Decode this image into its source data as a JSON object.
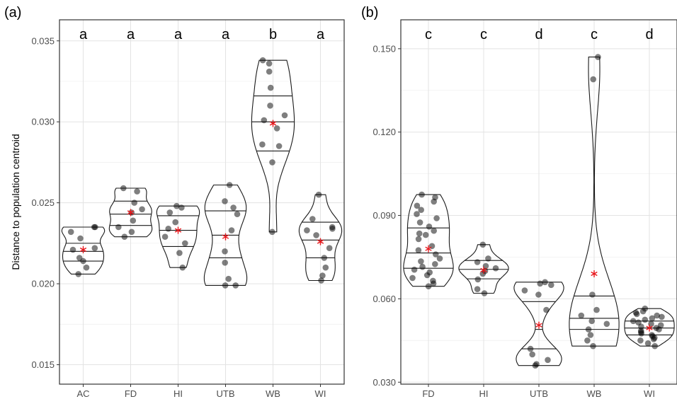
{
  "chart_data": [
    {
      "type": "violin",
      "panel_tag": "(a)",
      "ylabel": "Distance to population centroid",
      "ylim": [
        0.0138,
        0.0363
      ],
      "yticks": [
        0.015,
        0.02,
        0.025,
        0.03,
        0.035
      ],
      "ytick_labels": [
        "0.015",
        "0.020",
        "0.025",
        "0.030",
        "0.035"
      ],
      "grid": true,
      "mean_marker_color": "#e8161b",
      "point_color": "#000000",
      "groups": [
        {
          "category": "AC",
          "letter": "a",
          "mean": 0.0221,
          "quantiles": [
            0.0214,
            0.022,
            0.0225
          ],
          "points": [
            0.0235,
            0.0235,
            0.0232,
            0.0228,
            0.0222,
            0.0221,
            0.0216,
            0.0214,
            0.021,
            0.0206
          ]
        },
        {
          "category": "FD",
          "letter": "a",
          "mean": 0.0244,
          "quantiles": [
            0.0236,
            0.0243,
            0.0251
          ],
          "points": [
            0.0259,
            0.0257,
            0.025,
            0.0246,
            0.0244,
            0.0239,
            0.0235,
            0.0232,
            0.0229
          ]
        },
        {
          "category": "HI",
          "letter": "a",
          "mean": 0.0233,
          "quantiles": [
            0.0223,
            0.0233,
            0.0242
          ],
          "points": [
            0.0248,
            0.0247,
            0.0244,
            0.0238,
            0.0234,
            0.0229,
            0.0225,
            0.0219,
            0.021
          ]
        },
        {
          "category": "UTB",
          "letter": "a",
          "mean": 0.0229,
          "quantiles": [
            0.0216,
            0.023,
            0.0245
          ],
          "points": [
            0.0261,
            0.0251,
            0.0247,
            0.0243,
            0.0233,
            0.022,
            0.0213,
            0.0203,
            0.0199,
            0.0199
          ]
        },
        {
          "category": "WB",
          "letter": "b",
          "mean": 0.0299,
          "quantiles": [
            0.0282,
            0.03,
            0.0316
          ],
          "points": [
            0.0338,
            0.0336,
            0.0331,
            0.0321,
            0.031,
            0.0304,
            0.0301,
            0.0296,
            0.0286,
            0.0285,
            0.0275,
            0.0232
          ]
        },
        {
          "category": "WI",
          "letter": "a",
          "mean": 0.0226,
          "quantiles": [
            0.0216,
            0.0227,
            0.0238
          ],
          "points": [
            0.0255,
            0.024,
            0.0235,
            0.0234,
            0.0233,
            0.023,
            0.0222,
            0.0216,
            0.021,
            0.0205,
            0.0202
          ]
        }
      ]
    },
    {
      "type": "violin",
      "panel_tag": "(b)",
      "ylabel": "",
      "ylim": [
        0.0293,
        0.1604
      ],
      "yticks": [
        0.03,
        0.06,
        0.09,
        0.12,
        0.15
      ],
      "ytick_labels": [
        "0.030",
        "0.060",
        "0.090",
        "0.120",
        "0.150"
      ],
      "grid": true,
      "mean_marker_color": "#e8161b",
      "point_color": "#000000",
      "groups": [
        {
          "category": "FD",
          "letter": "c",
          "mean": 0.078,
          "quantiles": [
            0.071,
            0.0765,
            0.0855
          ],
          "points": [
            0.0975,
            0.0965,
            0.095,
            0.0935,
            0.092,
            0.0905,
            0.089,
            0.0875,
            0.086,
            0.0845,
            0.0835,
            0.083,
            0.0815,
            0.079,
            0.0775,
            0.076,
            0.0745,
            0.0735,
            0.0725,
            0.0715,
            0.0705,
            0.0695,
            0.0685,
            0.0675,
            0.0665,
            0.0655,
            0.0645
          ]
        },
        {
          "category": "HI",
          "letter": "c",
          "mean": 0.0703,
          "quantiles": [
            0.0672,
            0.0706,
            0.0738
          ],
          "points": [
            0.0795,
            0.0745,
            0.0732,
            0.0718,
            0.071,
            0.07,
            0.069,
            0.067,
            0.0635,
            0.062
          ]
        },
        {
          "category": "UTB",
          "letter": "d",
          "mean": 0.0505,
          "quantiles": [
            0.042,
            0.049,
            0.059
          ],
          "points": [
            0.066,
            0.0655,
            0.065,
            0.063,
            0.0615,
            0.056,
            0.042,
            0.04,
            0.038,
            0.0365,
            0.036
          ]
        },
        {
          "category": "WB",
          "letter": "c",
          "mean": 0.069,
          "quantiles": [
            0.049,
            0.053,
            0.061
          ],
          "points": [
            0.147,
            0.139,
            0.0615,
            0.056,
            0.054,
            0.052,
            0.051,
            0.049,
            0.047,
            0.045,
            0.043
          ]
        },
        {
          "category": "WI",
          "letter": "d",
          "mean": 0.0495,
          "quantiles": [
            0.047,
            0.0495,
            0.052
          ],
          "points": [
            0.0565,
            0.0555,
            0.055,
            0.0545,
            0.054,
            0.0535,
            0.053,
            0.0525,
            0.052,
            0.0515,
            0.051,
            0.0505,
            0.05,
            0.0495,
            0.049,
            0.0485,
            0.048,
            0.0475,
            0.047,
            0.0465,
            0.046,
            0.0455,
            0.045,
            0.044,
            0.043
          ]
        }
      ]
    }
  ]
}
